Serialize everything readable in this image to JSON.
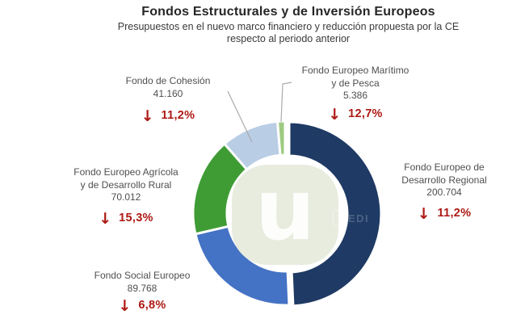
{
  "title": "Fondos Estructurales y de Inversión Europeos",
  "subtitle_line1": "Presupuestos en el nuevo marco financiero y reducción propuesta por la CE",
  "subtitle_line2": "respecto al periodo anterior",
  "ui": {
    "down_arrow": "↓"
  },
  "palette": {
    "reduction_red": "#ad1a14",
    "label_gray": "#4f4f4f",
    "leader_line": "#ababab",
    "logo_bg": "#e7ecde"
  },
  "watermark": {
    "center_letter": "u",
    "small_text": "EDI"
  },
  "chart_data": {
    "type": "pie",
    "subtype": "donut",
    "title": "Fondos Estructurales y de Inversión Europeos",
    "legend_position": "none",
    "start_angle_deg": 0,
    "direction": "clockwise",
    "categories": [
      "Fondo Europeo de Desarrollo Regional",
      "Fondo Social Europeo",
      "Fondo Europeo Agrícola y de Desarrollo Rural",
      "Fondo de Cohesión",
      "Fondo Europeo Marítimo y de Pesca"
    ],
    "values": [
      200704,
      89768,
      70012,
      41160,
      5386
    ],
    "reductions_pct": [
      "11,2%",
      "6,8%",
      "15,3%",
      "11,2%",
      "12,7%"
    ],
    "slices": [
      {
        "id": "feder",
        "name_lines": [
          "Fondo Europeo de",
          "Desarrollo Regional"
        ],
        "value_label": "200.704",
        "reduction": "11,2%",
        "color": "#1f3a64",
        "exploded": true
      },
      {
        "id": "fse",
        "name_lines": [
          "Fondo Social Europeo"
        ],
        "value_label": "89.768",
        "reduction": "6,8%",
        "color": "#4472c4",
        "exploded": false
      },
      {
        "id": "feader",
        "name_lines": [
          "Fondo Europeo Agrícola",
          "y de Desarrollo Rural"
        ],
        "value_label": "70.012",
        "reduction": "15,3%",
        "color": "#3f9c35",
        "exploded": false
      },
      {
        "id": "cohesion",
        "name_lines": [
          "Fondo de Cohesión"
        ],
        "value_label": "41.160",
        "reduction": "11,2%",
        "color": "#b9cde5",
        "exploded": false
      },
      {
        "id": "femp",
        "name_lines": [
          "Fondo Europeo Marítimo",
          "y de Pesca"
        ],
        "value_label": "5.386",
        "reduction": "12,7%",
        "color": "#9dca80",
        "exploded": false
      }
    ]
  }
}
